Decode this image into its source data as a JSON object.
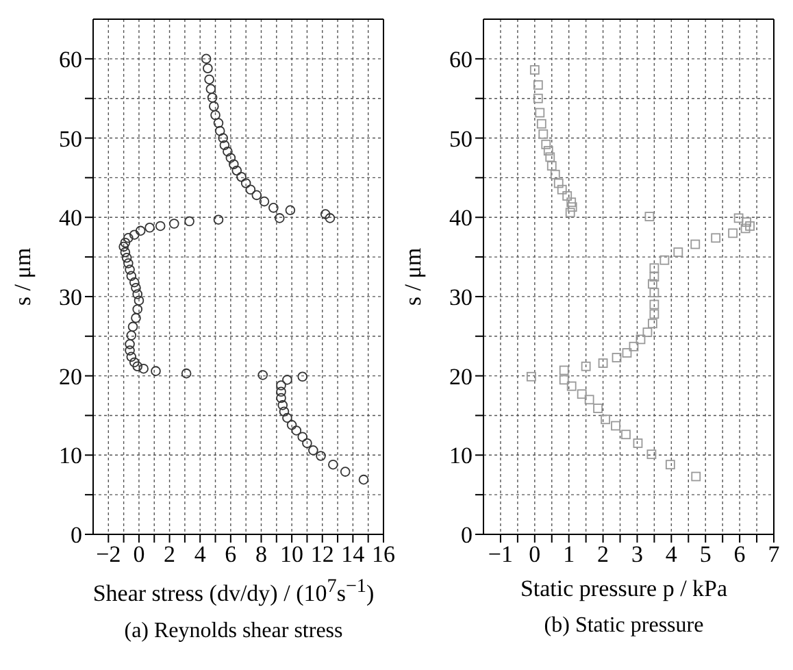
{
  "chart_data": [
    {
      "type": "scatter",
      "xlabel": "Shear stress (dv/dy) / (10$^{7}$s$^{−1}$)",
      "ylabel": "s / μm",
      "annotations": [
        "(a)  Reynolds shear stress"
      ],
      "marker": "circle",
      "grid": true,
      "xlim": [
        -3,
        16
      ],
      "xticks": [
        -2,
        {
          "value": -1,
          "label": null
        },
        0,
        {
          "value": 1,
          "label": null
        },
        2,
        {
          "value": 3,
          "label": null
        },
        4,
        {
          "value": 5,
          "label": null
        },
        6,
        {
          "value": 7,
          "label": null
        },
        8,
        {
          "value": 9,
          "label": null
        },
        10,
        {
          "value": 11,
          "label": null
        },
        12,
        {
          "value": 13,
          "label": null
        },
        14,
        {
          "value": 15,
          "label": null
        },
        16
      ],
      "ylim": [
        0,
        65
      ],
      "yticks": [
        0,
        {
          "value": 5,
          "label": null
        },
        10,
        {
          "value": 15,
          "label": null
        },
        20,
        {
          "value": 25,
          "label": null
        },
        30,
        {
          "value": 35,
          "label": null
        },
        40,
        {
          "value": 45,
          "label": null
        },
        50,
        {
          "value": 55,
          "label": null
        },
        60
      ],
      "series": [
        {
          "color": "#333333",
          "x": [
            4.4,
            4.5,
            4.6,
            4.7,
            4.8,
            4.9,
            5.0,
            5.2,
            5.3,
            5.5,
            5.6,
            5.8,
            6.0,
            6.2,
            6.4,
            6.7,
            7.0,
            7.3,
            7.7,
            8.2,
            8.8,
            9.9,
            12.2,
            12.5,
            9.2,
            5.2,
            3.3,
            2.3,
            1.4,
            0.7,
            0.1,
            -0.3,
            -0.7,
            -0.9,
            -1.0,
            -0.9,
            -0.8,
            -0.7,
            -0.6,
            -0.5,
            -0.3,
            -0.2,
            -0.1,
            0.0,
            -0.1,
            -0.2,
            -0.4,
            -0.5,
            -0.6,
            -0.6,
            -0.5,
            -0.3,
            -0.1,
            0.3,
            1.1,
            3.1,
            8.1,
            10.7,
            9.7,
            9.3,
            9.3,
            9.3,
            9.4,
            9.5,
            9.7,
            10.0,
            10.3,
            10.7,
            11.0,
            11.4,
            11.9,
            12.7,
            13.5,
            14.7
          ],
          "values": [
            60,
            58.8,
            57.4,
            56.2,
            55.1,
            54,
            52.9,
            51.9,
            50.9,
            50,
            49.1,
            48.3,
            47.5,
            46.7,
            45.9,
            45.1,
            44.3,
            43.5,
            42.8,
            42.0,
            41.2,
            40.9,
            40.4,
            39.9,
            39.9,
            39.7,
            39.5,
            39.2,
            38.9,
            38.7,
            38.3,
            37.8,
            37.4,
            36.8,
            36.3,
            35.6,
            34.9,
            34.2,
            33.4,
            32.6,
            31.8,
            31.1,
            30.3,
            29.5,
            28.4,
            27.3,
            26.2,
            25.1,
            24.0,
            23.2,
            22.4,
            21.7,
            21.2,
            20.9,
            20.6,
            20.3,
            20.1,
            19.9,
            19.5,
            18.8,
            18.0,
            17.2,
            16.3,
            15.5,
            14.7,
            13.8,
            13.1,
            12.3,
            11.5,
            10.6,
            9.9,
            8.8,
            7.9,
            6.9
          ]
        }
      ]
    },
    {
      "type": "scatter",
      "xlabel": "Static pressure p / kPa",
      "ylabel": "s / μm",
      "annotations": [
        "(b)  Static pressure"
      ],
      "marker": "square",
      "grid": true,
      "xlim": [
        -1.5,
        7
      ],
      "xticks": [
        -1,
        {
          "value": -0.5,
          "label": null
        },
        0,
        {
          "value": 0.5,
          "label": null
        },
        1,
        {
          "value": 1.5,
          "label": null
        },
        2,
        {
          "value": 2.5,
          "label": null
        },
        3,
        {
          "value": 3.5,
          "label": null
        },
        4,
        {
          "value": 4.5,
          "label": null
        },
        5,
        {
          "value": 5.5,
          "label": null
        },
        6,
        {
          "value": 6.5,
          "label": null
        },
        7
      ],
      "ylim": [
        0,
        65
      ],
      "yticks": [
        0,
        {
          "value": 5,
          "label": null
        },
        10,
        {
          "value": 15,
          "label": null
        },
        20,
        {
          "value": 25,
          "label": null
        },
        30,
        {
          "value": 35,
          "label": null
        },
        40,
        {
          "value": 45,
          "label": null
        },
        50,
        {
          "value": 55,
          "label": null
        },
        60
      ],
      "series": [
        {
          "color": "#999999",
          "x": [
            0.0,
            0.1,
            0.1,
            0.15,
            0.2,
            0.25,
            0.33,
            0.4,
            0.45,
            0.5,
            0.6,
            0.7,
            0.8,
            0.95,
            1.07,
            1.1,
            1.04,
            3.36,
            5.97,
            6.2,
            6.3,
            6.17,
            5.8,
            5.3,
            4.7,
            4.2,
            3.8,
            3.5,
            3.5,
            3.45,
            3.5,
            3.5,
            3.5,
            3.45,
            3.3,
            3.1,
            2.9,
            2.7,
            2.4,
            2.0,
            1.5,
            0.86,
            -0.1,
            0.86,
            1.08,
            1.38,
            1.6,
            1.85,
            2.07,
            2.37,
            2.67,
            3.02,
            3.42,
            3.97,
            4.72
          ],
          "values": [
            58.6,
            56.7,
            55.0,
            53.2,
            51.8,
            50.5,
            49.2,
            48.4,
            47.6,
            46.5,
            45.4,
            44.3,
            43.5,
            42.7,
            41.9,
            41.3,
            40.6,
            40.1,
            39.9,
            39.4,
            38.9,
            38.6,
            38.0,
            37.4,
            36.6,
            35.6,
            34.6,
            33.6,
            32.5,
            31.6,
            30.5,
            29.0,
            27.8,
            26.6,
            25.5,
            24.6,
            23.7,
            22.9,
            22.3,
            21.6,
            21.2,
            20.7,
            19.9,
            19.5,
            18.7,
            17.7,
            17.0,
            15.9,
            14.5,
            13.7,
            12.6,
            11.5,
            10.1,
            8.8,
            7.3
          ]
        }
      ]
    }
  ]
}
